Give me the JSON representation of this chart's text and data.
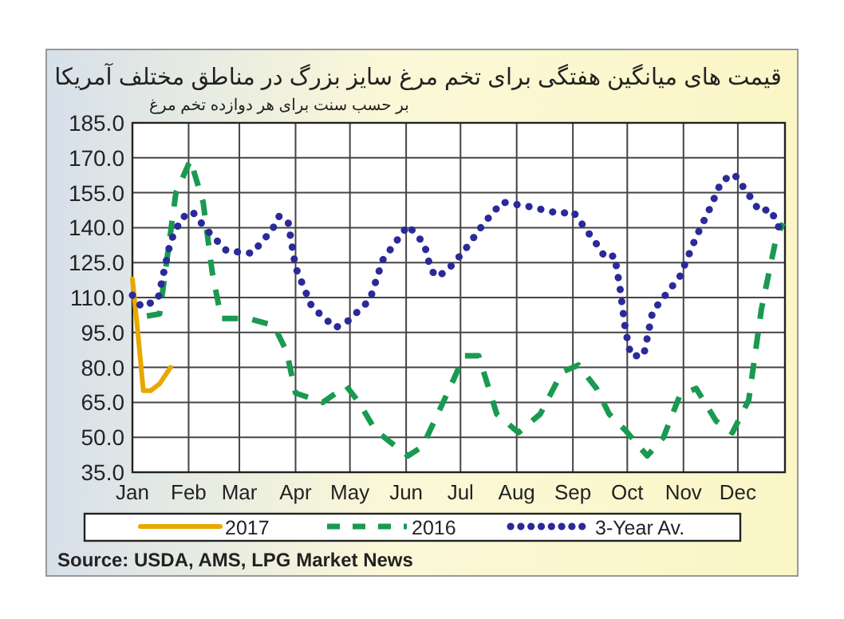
{
  "chart_data": {
    "type": "line",
    "title": "قیمت های میانگین هفتگی برای تخم مرغ سایز بزرگ در مناطق مختلف آمریکا",
    "subtitle": "بر حسب سنت برای هر دوازده تخم مرغ",
    "xlim": [
      "--01-01",
      "--12-27"
    ],
    "xticks": [
      {
        "value": "--01-01",
        "label": "Jan"
      },
      {
        "value": "--02-01",
        "label": "Feb"
      },
      {
        "value": "--03-01",
        "label": "Mar"
      },
      {
        "value": "--04-01",
        "label": "Apr"
      },
      {
        "value": "--05-01",
        "label": "May"
      },
      {
        "value": "--06-01",
        "label": "Jun"
      },
      {
        "value": "--07-01",
        "label": "Jul"
      },
      {
        "value": "--08-01",
        "label": "Aug"
      },
      {
        "value": "--09-01",
        "label": "Sep"
      },
      {
        "value": "--10-01",
        "label": "Oct"
      },
      {
        "value": "--11-01",
        "label": "Nov"
      },
      {
        "value": "--12-01",
        "label": "Dec"
      }
    ],
    "ylim": [
      35,
      185
    ],
    "yticks": [
      {
        "value": 35,
        "label": "35.0"
      },
      {
        "value": 50,
        "label": "50.0"
      },
      {
        "value": 65,
        "label": "65.0"
      },
      {
        "value": 80,
        "label": "80.0"
      },
      {
        "value": 95,
        "label": "95.0"
      },
      {
        "value": 110,
        "label": "110.0"
      },
      {
        "value": 125,
        "label": "125.0"
      },
      {
        "value": 140,
        "label": "140.0"
      },
      {
        "value": 155,
        "label": "155.0"
      },
      {
        "value": 170,
        "label": "170.0"
      },
      {
        "value": 185,
        "label": "185.0"
      }
    ],
    "grid": true,
    "legend": "bottom",
    "marker": "none",
    "series": [
      {
        "name": "2017",
        "color": "#e8a800",
        "line_style": "solid",
        "x": [
          "--01-01",
          "--01-04",
          "--01-07",
          "--01-11",
          "--01-16",
          "--01-22"
        ],
        "values": [
          118,
          95,
          70,
          70,
          73,
          80
        ]
      },
      {
        "name": "2016",
        "color": "#1a9a50",
        "line_style": "dashed",
        "x": [
          "--01-01",
          "--01-16",
          "--01-25",
          "--02-02",
          "--02-09",
          "--02-14",
          "--02-19",
          "--03-06",
          "--03-20",
          "--03-27",
          "--04-01",
          "--04-16",
          "--04-29",
          "--05-06",
          "--05-15",
          "--06-02",
          "--06-10",
          "--06-25",
          "--07-03",
          "--07-11",
          "--07-21",
          "--08-02",
          "--08-14",
          "--08-26",
          "--09-04",
          "--09-14",
          "--09-21",
          "--09-30",
          "--10-12",
          "--10-21",
          "--10-30",
          "--11-08",
          "--11-19",
          "--11-28",
          "--12-07",
          "--12-14",
          "--12-22",
          "--12-26"
        ],
        "values": [
          101,
          103,
          155,
          169,
          151,
          121,
          101,
          101,
          98,
          87,
          69,
          65,
          72,
          65,
          53,
          42,
          46,
          71,
          85,
          85,
          60,
          52,
          60,
          78,
          81,
          71,
          60,
          53,
          42,
          50,
          68,
          71,
          57,
          52,
          66,
          105,
          135,
          142
        ]
      },
      {
        "name": "3-Year Av.",
        "color": "#2a2a9a",
        "line_style": "dotted",
        "x": [
          "--01-01",
          "--01-06",
          "--01-15",
          "--01-22",
          "--01-28",
          "--02-03",
          "--02-11",
          "--02-22",
          "--03-08",
          "--03-19",
          "--03-23",
          "--03-28",
          "--04-01",
          "--04-10",
          "--04-23",
          "--04-30",
          "--05-12",
          "--05-19",
          "--06-02",
          "--06-11",
          "--06-14",
          "--06-17",
          "--06-23",
          "--07-03",
          "--07-14",
          "--07-24",
          "--08-08",
          "--08-25",
          "--09-01",
          "--09-14",
          "--09-19",
          "--09-24",
          "--09-27",
          "--09-30",
          "--10-03",
          "--10-10",
          "--10-15",
          "--10-21",
          "--10-30",
          "--11-08",
          "--11-16",
          "--11-22",
          "--11-29",
          "--12-08",
          "--12-13",
          "--12-19",
          "--12-26"
        ],
        "values": [
          111,
          106,
          109,
          134,
          144,
          147,
          139,
          130,
          129,
          139,
          145,
          142,
          123,
          106,
          97,
          100,
          109,
          126,
          141,
          133,
          124,
          119,
          121,
          130,
          142,
          151,
          149,
          146,
          147,
          133,
          127,
          128,
          114,
          96,
          85,
          85,
          104,
          110,
          119,
          136,
          149,
          160,
          163,
          153,
          147,
          148,
          136
        ]
      }
    ],
    "annotations": [
      "Source: USDA, AMS, LPG  Market News"
    ]
  }
}
